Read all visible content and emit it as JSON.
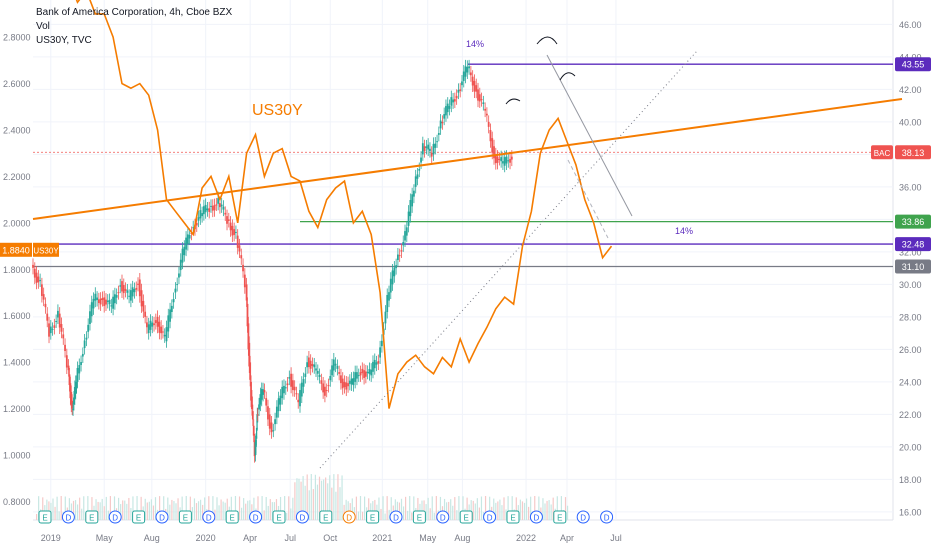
{
  "legend": {
    "symbol_line": "Bank of America Corporation, 4h, Cboe BZX",
    "volume_line": "Vol",
    "overlay_line": "US30Y, TVC"
  },
  "chart_data": {
    "type": "line",
    "title": "",
    "x_axis": {
      "ticks": [
        "2019",
        "May",
        "Aug",
        "2020",
        "Apr",
        "Jul",
        "Oct",
        "2021",
        "May",
        "Aug",
        "2022",
        "Apr",
        "Jul"
      ],
      "tick_pos": [
        0.04,
        0.16,
        0.267,
        0.388,
        0.488,
        0.578,
        0.668,
        0.785,
        0.887,
        0.965,
        1.108,
        1.2,
        1.31
      ]
    },
    "right_axis": {
      "min": 15.5,
      "max": 47.5,
      "ticks": [
        "16.00",
        "18.00",
        "20.00",
        "22.00",
        "24.00",
        "26.00",
        "28.00",
        "30.00",
        "32.00",
        "34.00",
        "36.00",
        "38.00",
        "40.00",
        "42.00",
        "44.00",
        "46.00"
      ],
      "tick_values": [
        16,
        18,
        20,
        22,
        24,
        26,
        28,
        30,
        32,
        34,
        36,
        38,
        40,
        42,
        44,
        46
      ]
    },
    "left_axis": {
      "min": 0.72,
      "max": 2.96,
      "ticks": [
        "0.8000",
        "1.0000",
        "1.2000",
        "1.4000",
        "1.6000",
        "1.8000",
        "2.0000",
        "2.2000",
        "2.4000",
        "2.6000",
        "2.8000"
      ],
      "tick_values": [
        0.8,
        1.0,
        1.2,
        1.4,
        1.6,
        1.8,
        2.0,
        2.2,
        2.4,
        2.6,
        2.8
      ]
    },
    "series": [
      {
        "name": "BAC",
        "axis": "right",
        "color": "#26a69a",
        "down_color": "#ef5350",
        "style": "candles",
        "points": [
          [
            0.0,
            31.2
          ],
          [
            0.02,
            30.0
          ],
          [
            0.04,
            27.0
          ],
          [
            0.06,
            28.2
          ],
          [
            0.08,
            25.0
          ],
          [
            0.09,
            22.3
          ],
          [
            0.1,
            24.0
          ],
          [
            0.12,
            26.6
          ],
          [
            0.14,
            29.0
          ],
          [
            0.16,
            29.2
          ],
          [
            0.18,
            28.5
          ],
          [
            0.2,
            30.2
          ],
          [
            0.22,
            29.0
          ],
          [
            0.24,
            30.3
          ],
          [
            0.26,
            27.0
          ],
          [
            0.28,
            28.0
          ],
          [
            0.3,
            26.5
          ],
          [
            0.32,
            29.5
          ],
          [
            0.34,
            31.8
          ],
          [
            0.36,
            33.5
          ],
          [
            0.38,
            34.2
          ],
          [
            0.4,
            34.8
          ],
          [
            0.42,
            35.0
          ],
          [
            0.44,
            34.0
          ],
          [
            0.46,
            33.0
          ],
          [
            0.48,
            30.0
          ],
          [
            0.49,
            24.0
          ],
          [
            0.5,
            19.5
          ],
          [
            0.505,
            22.0
          ],
          [
            0.52,
            23.5
          ],
          [
            0.54,
            21.0
          ],
          [
            0.56,
            23.0
          ],
          [
            0.58,
            24.5
          ],
          [
            0.6,
            22.5
          ],
          [
            0.62,
            25.5
          ],
          [
            0.64,
            24.5
          ],
          [
            0.66,
            23.5
          ],
          [
            0.68,
            25.0
          ],
          [
            0.7,
            24.0
          ],
          [
            0.72,
            23.8
          ],
          [
            0.74,
            24.8
          ],
          [
            0.76,
            24.4
          ],
          [
            0.78,
            25.5
          ],
          [
            0.8,
            29.0
          ],
          [
            0.82,
            31.5
          ],
          [
            0.84,
            33.0
          ],
          [
            0.86,
            36.0
          ],
          [
            0.88,
            38.5
          ],
          [
            0.9,
            38.0
          ],
          [
            0.92,
            40.0
          ],
          [
            0.94,
            41.0
          ],
          [
            0.96,
            42.0
          ],
          [
            0.98,
            43.3
          ],
          [
            1.0,
            42.0
          ],
          [
            1.02,
            40.5
          ],
          [
            1.04,
            38.0
          ],
          [
            1.06,
            37.3
          ],
          [
            1.08,
            38.0
          ]
        ]
      },
      {
        "name": "US30Y",
        "axis": "left",
        "color": "#f57c00",
        "style": "line",
        "points": [
          [
            0.0,
            3.05
          ],
          [
            0.02,
            3.0
          ],
          [
            0.04,
            3.1
          ],
          [
            0.06,
            2.98
          ],
          [
            0.08,
            3.05
          ],
          [
            0.1,
            2.95
          ],
          [
            0.12,
            3.0
          ],
          [
            0.14,
            2.9
          ],
          [
            0.16,
            2.9
          ],
          [
            0.18,
            2.8
          ],
          [
            0.2,
            2.6
          ],
          [
            0.22,
            2.58
          ],
          [
            0.24,
            2.6
          ],
          [
            0.26,
            2.55
          ],
          [
            0.28,
            2.4
          ],
          [
            0.3,
            2.1
          ],
          [
            0.32,
            2.05
          ],
          [
            0.34,
            2.0
          ],
          [
            0.36,
            1.95
          ],
          [
            0.38,
            2.15
          ],
          [
            0.4,
            2.2
          ],
          [
            0.42,
            2.1
          ],
          [
            0.44,
            2.2
          ],
          [
            0.46,
            2.0
          ],
          [
            0.48,
            2.3
          ],
          [
            0.5,
            2.38
          ],
          [
            0.52,
            2.2
          ],
          [
            0.54,
            2.3
          ],
          [
            0.56,
            2.32
          ],
          [
            0.58,
            2.2
          ],
          [
            0.6,
            2.18
          ],
          [
            0.62,
            2.05
          ],
          [
            0.64,
            1.98
          ],
          [
            0.66,
            2.1
          ],
          [
            0.68,
            2.15
          ],
          [
            0.7,
            2.18
          ],
          [
            0.72,
            2.0
          ],
          [
            0.74,
            2.05
          ],
          [
            0.76,
            1.95
          ],
          [
            0.78,
            1.7
          ],
          [
            0.8,
            1.2
          ],
          [
            0.82,
            1.35
          ],
          [
            0.84,
            1.4
          ],
          [
            0.86,
            1.43
          ],
          [
            0.88,
            1.38
          ],
          [
            0.9,
            1.35
          ],
          [
            0.92,
            1.42
          ],
          [
            0.94,
            1.38
          ],
          [
            0.96,
            1.5
          ],
          [
            0.98,
            1.4
          ],
          [
            1.0,
            1.48
          ],
          [
            1.02,
            1.55
          ],
          [
            1.04,
            1.63
          ],
          [
            1.06,
            1.68
          ],
          [
            1.08,
            1.65
          ],
          [
            1.1,
            1.9
          ],
          [
            1.12,
            2.05
          ],
          [
            1.14,
            2.3
          ],
          [
            1.16,
            2.4
          ],
          [
            1.18,
            2.45
          ],
          [
            1.2,
            2.35
          ],
          [
            1.22,
            2.25
          ],
          [
            1.24,
            2.1
          ],
          [
            1.26,
            2.0
          ],
          [
            1.28,
            1.85
          ],
          [
            1.3,
            1.9
          ]
        ]
      }
    ],
    "levels": [
      {
        "value": 43.55,
        "label": "43.55",
        "color": "#5b2bbd"
      },
      {
        "value": 38.13,
        "label": "38.13",
        "symbol": "BAC",
        "color": "#ef5350"
      },
      {
        "value": 33.86,
        "label": "33.86",
        "color": "#3fa34d"
      },
      {
        "value": 32.48,
        "label": "32.48",
        "color": "#5b2bbd"
      },
      {
        "value": 31.1,
        "label": "31.10",
        "color": "#787b86"
      }
    ],
    "current_left_value": {
      "value": 1.884,
      "label": "1.8840",
      "symbol": "US30Y"
    },
    "annotations": [
      {
        "text": "US30Y",
        "color": "#f57c00"
      },
      {
        "text": "14%",
        "color": "#5b2bbd"
      },
      {
        "text": "14%",
        "color": "#5b2bbd"
      }
    ],
    "events": [
      "E",
      "D",
      "E",
      "D",
      "E",
      "D",
      "E",
      "D",
      "E",
      "D",
      "E",
      "D",
      "E",
      "D",
      "E",
      "D",
      "E",
      "D",
      "E",
      "D",
      "E",
      "D",
      "E",
      "D",
      "D"
    ],
    "grid": true
  }
}
